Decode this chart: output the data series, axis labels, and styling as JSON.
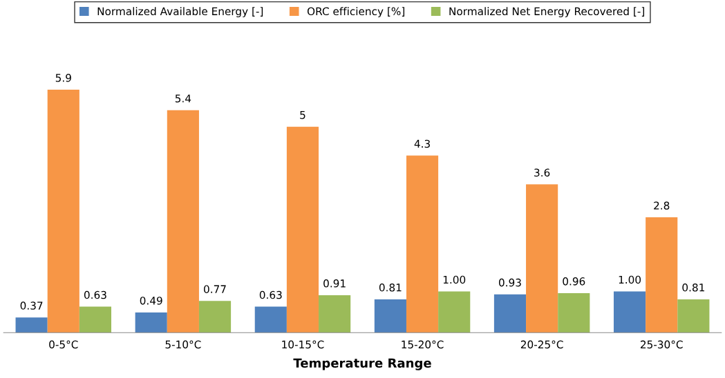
{
  "chart_data": {
    "type": "bar",
    "xlabel": "Temperature Range",
    "categories": [
      "0-5°C",
      "5-10°C",
      "10-15°C",
      "15-20°C",
      "20-25°C",
      "25-30°C"
    ],
    "series": [
      {
        "name": "Normalized Available Energy [-]",
        "color": "#4f81bd",
        "values": [
          0.37,
          0.49,
          0.63,
          0.81,
          0.93,
          1.0
        ],
        "value_labels": [
          "0.37",
          "0.49",
          "0.63",
          "0.81",
          "0.93",
          "1.00"
        ]
      },
      {
        "name": "ORC efficiency [%]",
        "color": "#f79646",
        "values": [
          5.9,
          5.4,
          5,
          4.3,
          3.6,
          2.8
        ],
        "value_labels": [
          "5.9",
          "5.4",
          "5",
          "4.3",
          "3.6",
          "2.8"
        ]
      },
      {
        "name": "Normalized Net Energy Recovered [-]",
        "color": "#9bbb59",
        "values": [
          0.63,
          0.77,
          0.91,
          1.0,
          0.96,
          0.81
        ],
        "value_labels": [
          "0.63",
          "0.77",
          "0.91",
          "1.00",
          "0.96",
          "0.81"
        ]
      }
    ],
    "tick_labels": "x",
    "grid": false,
    "legend": "top"
  }
}
